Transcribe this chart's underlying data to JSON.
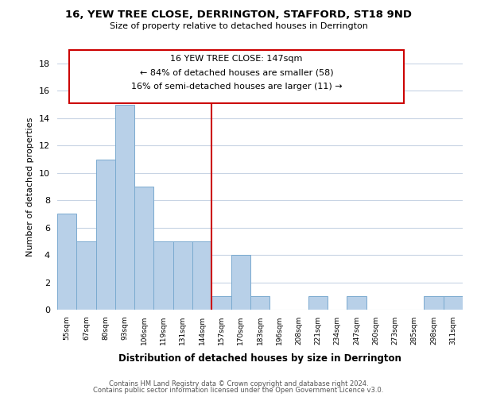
{
  "title": "16, YEW TREE CLOSE, DERRINGTON, STAFFORD, ST18 9ND",
  "subtitle": "Size of property relative to detached houses in Derrington",
  "xlabel": "Distribution of detached houses by size in Derrington",
  "ylabel": "Number of detached properties",
  "bar_labels": [
    "55sqm",
    "67sqm",
    "80sqm",
    "93sqm",
    "106sqm",
    "119sqm",
    "131sqm",
    "144sqm",
    "157sqm",
    "170sqm",
    "183sqm",
    "196sqm",
    "208sqm",
    "221sqm",
    "234sqm",
    "247sqm",
    "260sqm",
    "273sqm",
    "285sqm",
    "298sqm",
    "311sqm"
  ],
  "bar_values": [
    7,
    5,
    11,
    15,
    9,
    5,
    5,
    5,
    1,
    4,
    1,
    0,
    0,
    1,
    0,
    1,
    0,
    0,
    0,
    1,
    1
  ],
  "bar_color": "#b8d0e8",
  "bar_edge_color": "#7aaacf",
  "vline_x": 7.5,
  "vline_color": "#cc0000",
  "ylim": [
    0,
    18
  ],
  "yticks": [
    0,
    2,
    4,
    6,
    8,
    10,
    12,
    14,
    16,
    18
  ],
  "annotation_title": "16 YEW TREE CLOSE: 147sqm",
  "annotation_line1": "← 84% of detached houses are smaller (58)",
  "annotation_line2": "16% of semi-detached houses are larger (11) →",
  "footer_line1": "Contains HM Land Registry data © Crown copyright and database right 2024.",
  "footer_line2": "Contains public sector information licensed under the Open Government Licence v3.0.",
  "background_color": "#ffffff",
  "grid_color": "#c8d4e4"
}
